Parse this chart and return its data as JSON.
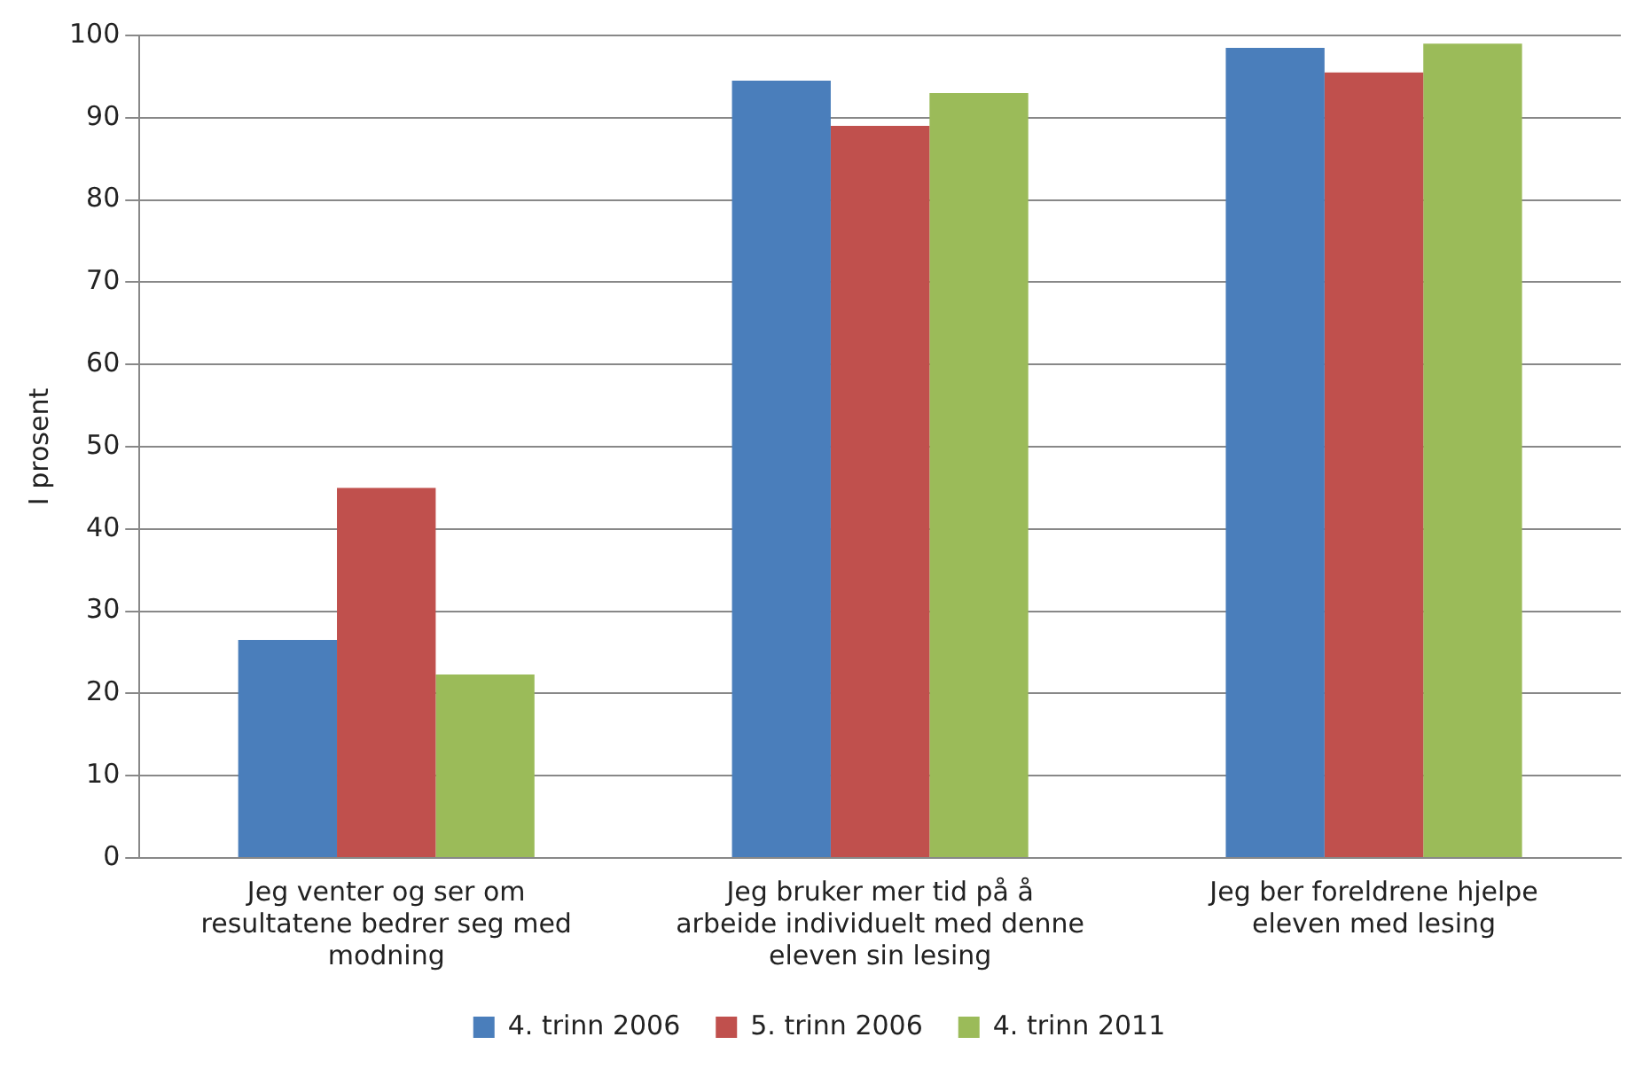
{
  "chart_data": {
    "type": "bar",
    "ylabel": "I prosent",
    "categories": [
      "Jeg venter og ser om resultatene bedrer seg med modning",
      "Jeg bruker mer tid på å arbeide individuelt med denne eleven sin lesing",
      "Jeg ber foreldrene hjelpe eleven med lesing"
    ],
    "series": [
      {
        "name": "4. trinn 2006",
        "color": "#4a7ebb",
        "values": [
          26.5,
          94.5,
          98.5
        ]
      },
      {
        "name": "5. trinn 2006",
        "color": "#c0504d",
        "values": [
          45,
          89,
          95.5
        ]
      },
      {
        "name": "4. trinn 2011",
        "color": "#9bbb59",
        "values": [
          22.3,
          93,
          99
        ]
      }
    ],
    "ylim": [
      0,
      100
    ],
    "yticks": [
      0,
      10,
      20,
      30,
      40,
      50,
      60,
      70,
      80,
      90,
      100
    ],
    "grid": "y",
    "legend": "bottom"
  }
}
